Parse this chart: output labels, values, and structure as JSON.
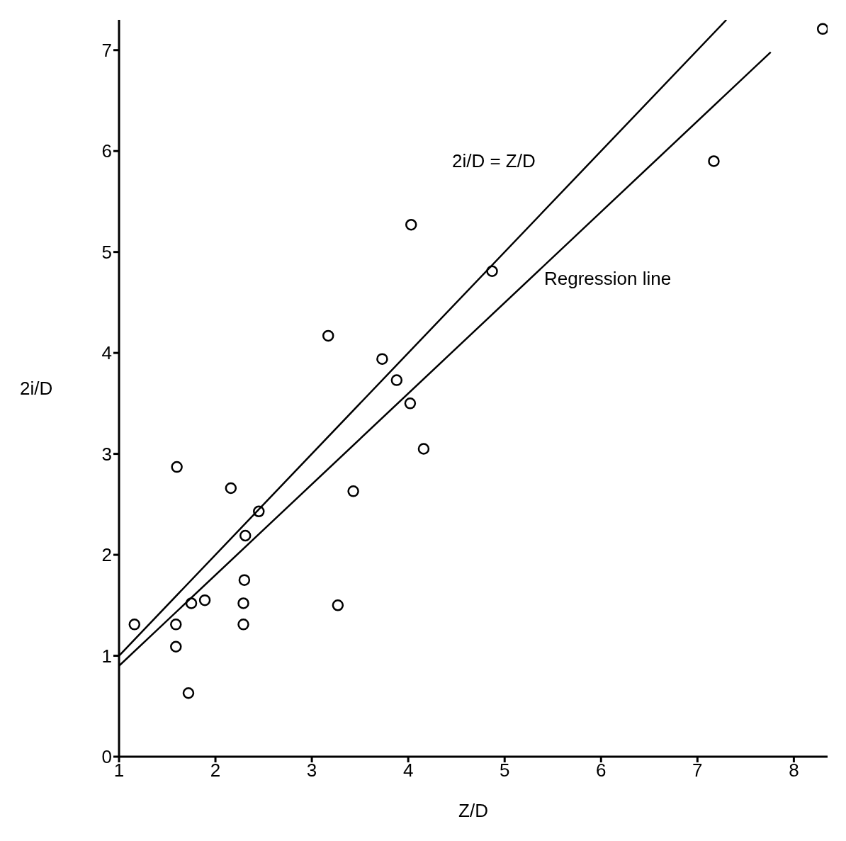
{
  "chart_data": {
    "type": "scatter",
    "xlabel": "Z/D",
    "ylabel": "2i/D",
    "xlim": [
      1,
      8.35
    ],
    "ylim": [
      0,
      7.3
    ],
    "xticks": [
      1,
      2,
      3,
      4,
      5,
      6,
      7,
      8
    ],
    "yticks": [
      0,
      1,
      2,
      3,
      4,
      5,
      6,
      7
    ],
    "marker": "circle",
    "series": [
      {
        "color": "#000000",
        "x": [
          1.16,
          1.6,
          1.59,
          1.59,
          1.72,
          1.75,
          1.89,
          2.16,
          2.29,
          2.29,
          2.3,
          2.31,
          2.45,
          3.17,
          3.27,
          3.43,
          3.73,
          3.88,
          4.02,
          4.03,
          4.16,
          4.87,
          7.17,
          8.3
        ],
        "values": [
          1.31,
          2.87,
          1.31,
          1.09,
          0.63,
          1.52,
          1.55,
          2.66,
          1.31,
          1.52,
          1.75,
          2.19,
          2.43,
          4.17,
          1.5,
          2.63,
          3.94,
          3.73,
          3.5,
          5.27,
          3.05,
          4.81,
          5.9,
          7.21
        ]
      },
      {
        "type": "line",
        "color": "#000000",
        "marker": "none",
        "line_style": "solid",
        "x": [
          1,
          7.3
        ],
        "values": [
          1,
          7.3
        ]
      },
      {
        "type": "line",
        "color": "#000000",
        "marker": "none",
        "line_style": "solid",
        "x": [
          1,
          7.76
        ],
        "values": [
          0.9,
          6.98
        ]
      }
    ],
    "annotations": [
      "2i/D = Z/D",
      "Regression line"
    ]
  }
}
